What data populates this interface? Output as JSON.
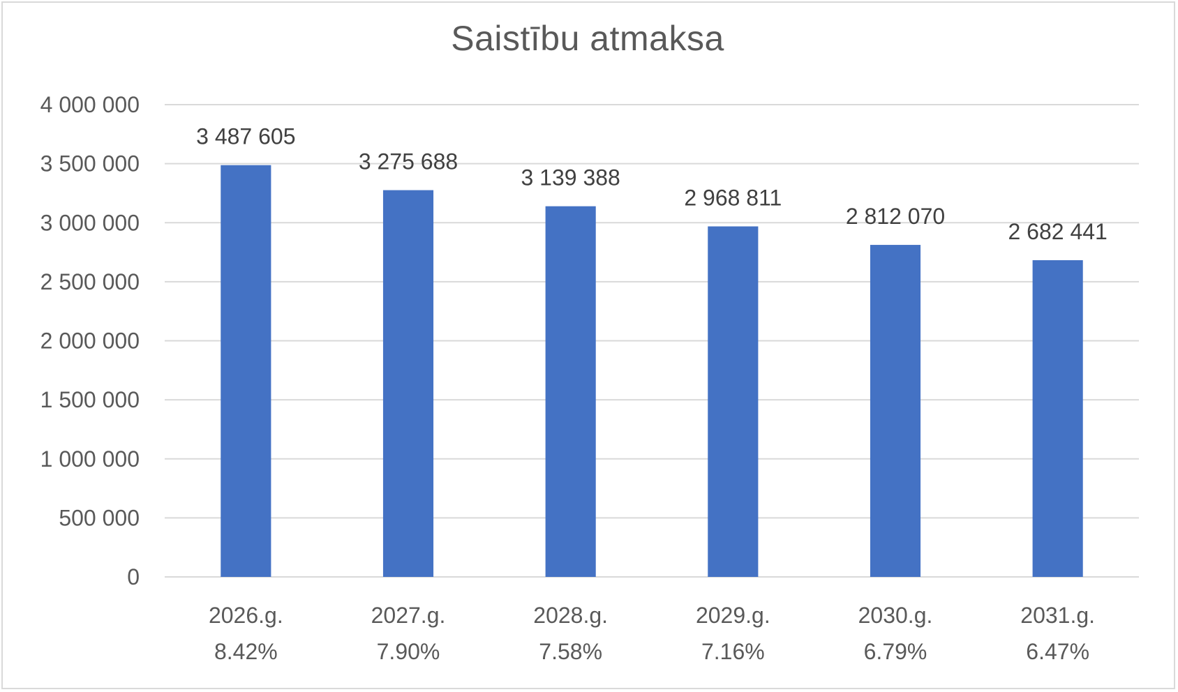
{
  "chart_data": {
    "type": "bar",
    "title": "Saistību atmaksa",
    "categories": [
      [
        "2026.g.",
        "8.42%"
      ],
      [
        "2027.g.",
        "7.90%"
      ],
      [
        "2028.g.",
        "7.58%"
      ],
      [
        "2029.g.",
        "7.16%"
      ],
      [
        "2030.g.",
        "6.79%"
      ],
      [
        "2031.g.",
        "6.47%"
      ]
    ],
    "values": [
      3487605,
      3275688,
      3139388,
      2968811,
      2812070,
      2682441
    ],
    "data_labels": [
      "3 487 605",
      "3 275 688",
      "3 139 388",
      "2 968 811",
      "2 812 070",
      "2 682 441"
    ],
    "ylim": [
      0,
      4000000
    ],
    "yticks": [
      0,
      500000,
      1000000,
      1500000,
      2000000,
      2500000,
      3000000,
      3500000,
      4000000
    ],
    "ytick_labels": [
      "0",
      "500 000",
      "1 000 000",
      "1 500 000",
      "2 000 000",
      "2 500 000",
      "3 000 000",
      "3 500 000",
      "4 000 000"
    ],
    "xlabel": "",
    "ylabel": "",
    "grid": true,
    "legend": "none",
    "bar_color": "#4472c4"
  }
}
